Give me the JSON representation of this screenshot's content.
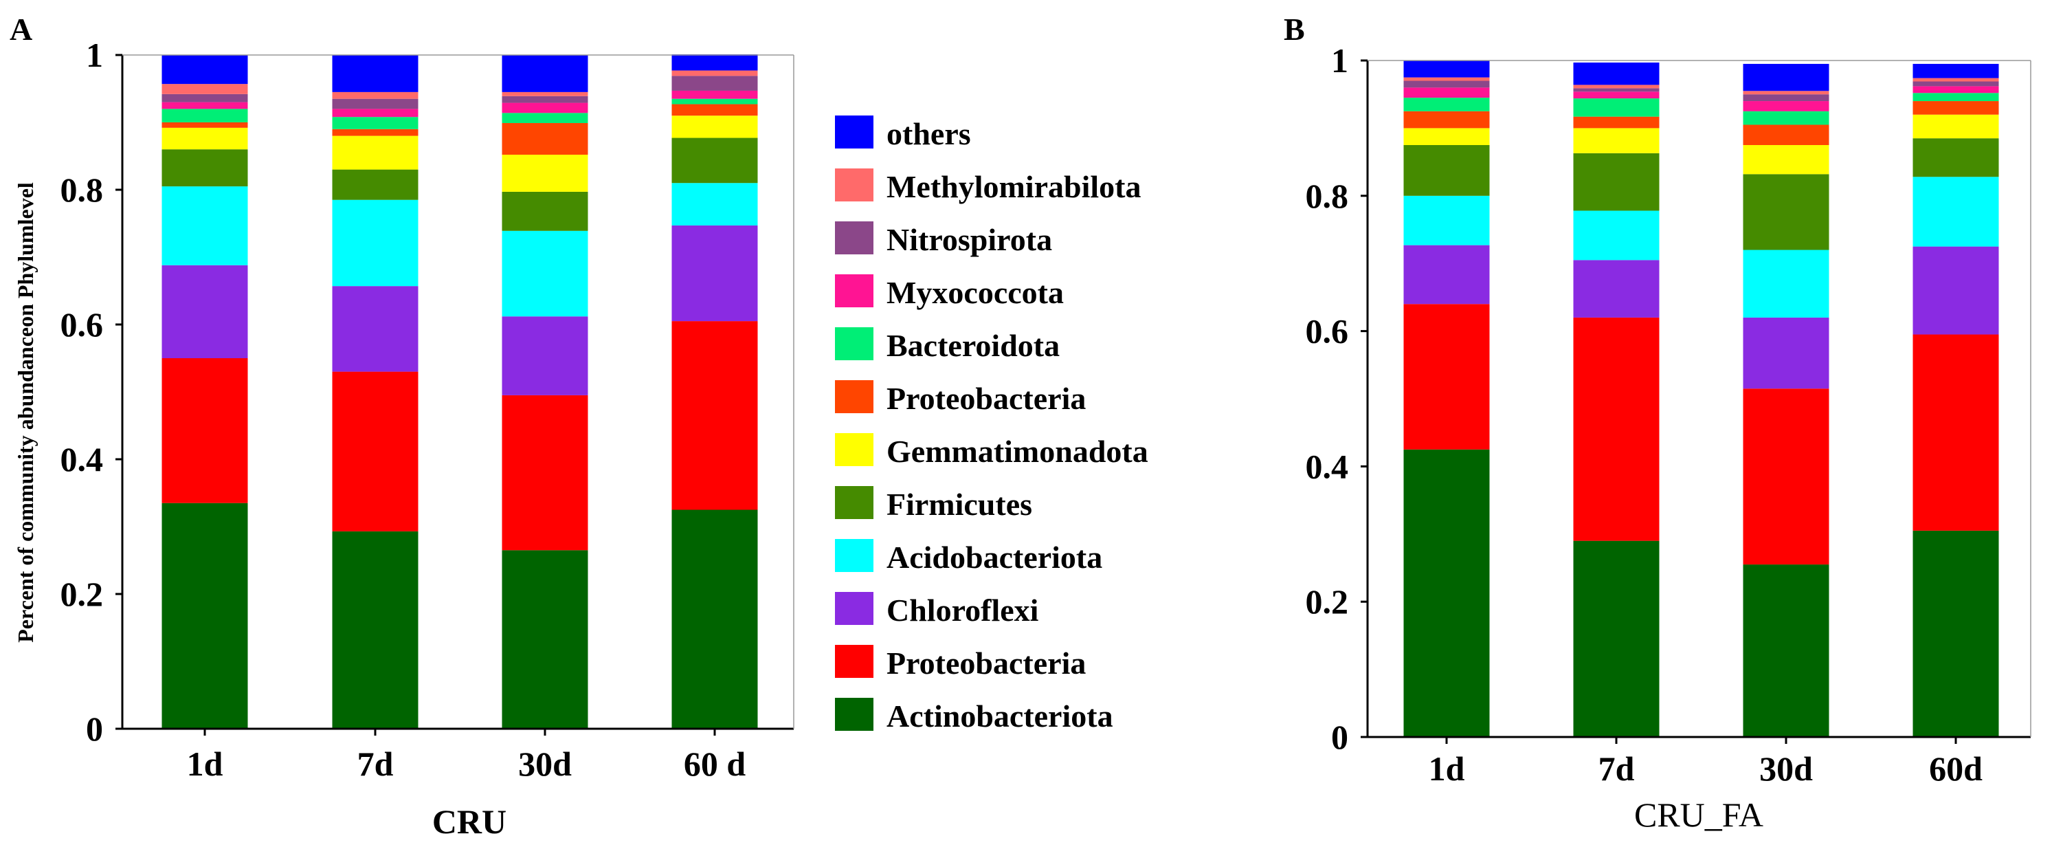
{
  "figure": {
    "ylabel": "Percent of community abundanceon Phylumlevel"
  },
  "chart_data": [
    {
      "type": "bar",
      "stacked": true,
      "panel_letter": "A",
      "title": "",
      "xlabel": "CRU",
      "ylabel": "Percent of community abundanceon Phylumlevel",
      "ylim": [
        0,
        1
      ],
      "yticks": [
        "0",
        "0.2",
        "0.4",
        "0.6",
        "0.8",
        "1"
      ],
      "categories": [
        "1d",
        "7d",
        "30d",
        "60 d"
      ],
      "series": [
        {
          "name": "Actinobacteriota",
          "color": "#006400",
          "values": [
            0.335,
            0.293,
            0.265,
            0.325
          ]
        },
        {
          "name": "Proteobacteria",
          "color": "#FF0000",
          "values": [
            0.215,
            0.237,
            0.23,
            0.28
          ]
        },
        {
          "name": "Chloroflexi",
          "color": "#8A2BE2",
          "values": [
            0.138,
            0.127,
            0.117,
            0.142
          ]
        },
        {
          "name": "Acidobacteriota",
          "color": "#00FFFF",
          "values": [
            0.117,
            0.128,
            0.127,
            0.063
          ]
        },
        {
          "name": "Firmicutes",
          "color": "#458B00",
          "values": [
            0.055,
            0.045,
            0.058,
            0.067
          ]
        },
        {
          "name": "Gemmatimonadota",
          "color": "#FFFF00",
          "values": [
            0.032,
            0.05,
            0.055,
            0.033
          ]
        },
        {
          "name": "Proteobacteria",
          "color": "#FF4500",
          "values": [
            0.008,
            0.01,
            0.047,
            0.017
          ]
        },
        {
          "name": "Bacteroidota",
          "color": "#00EE76",
          "values": [
            0.02,
            0.018,
            0.015,
            0.008
          ]
        },
        {
          "name": "Myxococcota",
          "color": "#FF1493",
          "values": [
            0.01,
            0.012,
            0.015,
            0.012
          ]
        },
        {
          "name": "Nitrospirota",
          "color": "#8B4789",
          "values": [
            0.012,
            0.015,
            0.01,
            0.022
          ]
        },
        {
          "name": "Methylomirabilota",
          "color": "#FF6A6A",
          "values": [
            0.015,
            0.01,
            0.006,
            0.008
          ]
        },
        {
          "name": "others",
          "color": "#0000FF",
          "values": [
            0.043,
            0.055,
            0.055,
            0.024
          ]
        }
      ]
    },
    {
      "type": "bar",
      "stacked": true,
      "panel_letter": "B",
      "title": "",
      "xlabel": "CRU_FA",
      "ylabel": "",
      "ylim": [
        0,
        1
      ],
      "yticks": [
        "0",
        "0.2",
        "0.4",
        "0.6",
        "0.8",
        "1"
      ],
      "categories": [
        "1d",
        "7d",
        "30d",
        "60d"
      ],
      "series": [
        {
          "name": "Actinobacteriota",
          "color": "#006400",
          "values": [
            0.425,
            0.29,
            0.255,
            0.305
          ]
        },
        {
          "name": "Proteobacteria",
          "color": "#FF0000",
          "values": [
            0.215,
            0.33,
            0.26,
            0.29
          ]
        },
        {
          "name": "Chloroflexi",
          "color": "#8A2BE2",
          "values": [
            0.087,
            0.085,
            0.105,
            0.13
          ]
        },
        {
          "name": "Acidobacteriota",
          "color": "#00FFFF",
          "values": [
            0.073,
            0.073,
            0.1,
            0.103
          ]
        },
        {
          "name": "Firmicutes",
          "color": "#458B00",
          "values": [
            0.075,
            0.085,
            0.112,
            0.057
          ]
        },
        {
          "name": "Gemmatimonadota",
          "color": "#FFFF00",
          "values": [
            0.025,
            0.037,
            0.043,
            0.035
          ]
        },
        {
          "name": "Proteobacteria",
          "color": "#FF4500",
          "values": [
            0.025,
            0.017,
            0.03,
            0.02
          ]
        },
        {
          "name": "Bacteroidota",
          "color": "#00EE76",
          "values": [
            0.02,
            0.027,
            0.02,
            0.012
          ]
        },
        {
          "name": "Myxococcota",
          "color": "#FF1493",
          "values": [
            0.015,
            0.01,
            0.015,
            0.01
          ]
        },
        {
          "name": "Nitrospirota",
          "color": "#8B4789",
          "values": [
            0.01,
            0.005,
            0.01,
            0.007
          ]
        },
        {
          "name": "Methylomirabilota",
          "color": "#FF6A6A",
          "values": [
            0.005,
            0.005,
            0.005,
            0.005
          ]
        },
        {
          "name": "others",
          "color": "#0000FF",
          "values": [
            0.025,
            0.033,
            0.04,
            0.021
          ]
        }
      ]
    }
  ],
  "legend": [
    {
      "label": "others",
      "color": "#0000FF"
    },
    {
      "label": "Methylomirabilota",
      "color": "#FF6A6A"
    },
    {
      "label": "Nitrospirota",
      "color": "#8B4789"
    },
    {
      "label": "Myxococcota",
      "color": "#FF1493"
    },
    {
      "label": "Bacteroidota",
      "color": "#00EE76"
    },
    {
      "label": "Proteobacteria",
      "color": "#FF4500"
    },
    {
      "label": "Gemmatimonadota",
      "color": "#FFFF00"
    },
    {
      "label": "Firmicutes",
      "color": "#458B00"
    },
    {
      "label": "Acidobacteriota",
      "color": "#00FFFF"
    },
    {
      "label": "Chloroflexi",
      "color": "#8A2BE2"
    },
    {
      "label": "Proteobacteria",
      "color": "#FF0000"
    },
    {
      "label": "Actinobacteriota",
      "color": "#006400"
    }
  ]
}
